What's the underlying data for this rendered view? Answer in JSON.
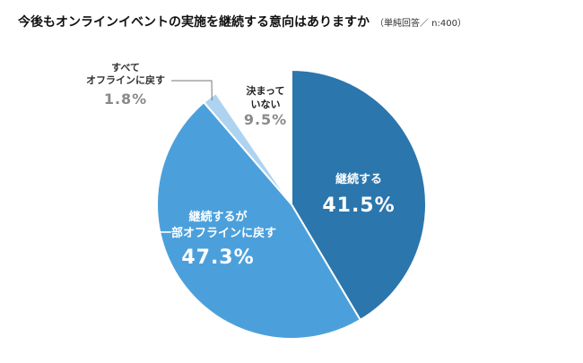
{
  "title": "今後もオンラインイベントの実施を継続する意向はありますか",
  "note": "（単純回答／ n:400）",
  "colors": [
    "#2b76ad",
    "#4ba0db",
    "#aed3f1",
    "#ffffff"
  ],
  "chart_data": {
    "type": "pie",
    "title": "今後もオンラインイベントの実施を継続する意向はありますか",
    "subtitle": "（単純回答／ n:400）",
    "slices": [
      {
        "label": [
          "継続する"
        ],
        "value": 41.5,
        "value_label": "41.5%",
        "color": "#2b76ad",
        "text_color": "#ffffff"
      },
      {
        "label": [
          "継続するが",
          "一部オフラインに戻す"
        ],
        "value": 47.3,
        "value_label": "47.3%",
        "color": "#4ba0db",
        "text_color": "#ffffff"
      },
      {
        "label": [
          "すべて",
          "オフラインに戻す"
        ],
        "value": 1.8,
        "value_label": "1.8%",
        "color": "#aed3f1",
        "text_color": "#8a8a8a"
      },
      {
        "label": [
          "決まって",
          "いない"
        ],
        "value": 9.5,
        "value_label": "9.5%",
        "color": "#ffffff",
        "text_color": "#8a8a8a"
      }
    ]
  }
}
